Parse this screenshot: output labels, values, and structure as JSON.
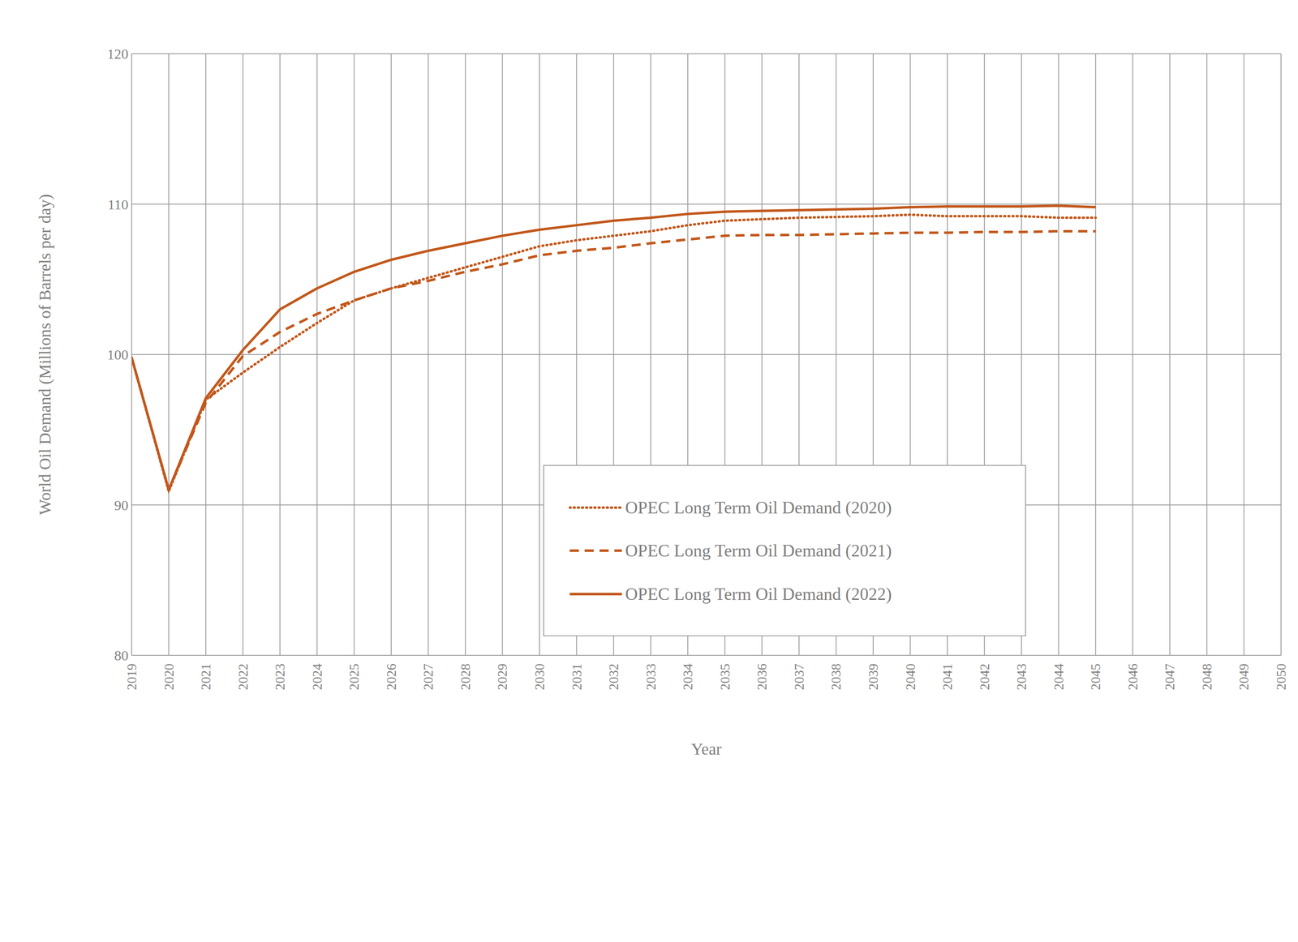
{
  "chart_data": {
    "type": "line",
    "x_label": "Year",
    "y_label": "World Oil Demand (Millions of Barrels per day)",
    "x": [
      2019,
      2020,
      2021,
      2022,
      2023,
      2024,
      2025,
      2026,
      2027,
      2028,
      2029,
      2030,
      2031,
      2032,
      2033,
      2034,
      2035,
      2036,
      2037,
      2038,
      2039,
      2040,
      2041,
      2042,
      2043,
      2044,
      2045
    ],
    "series": [
      {
        "name": "OPEC Long Term Oil Demand (2020)",
        "color": "#c2571a",
        "line_style": "dotted",
        "values": [
          99.8,
          90.9,
          97.0,
          98.8,
          100.5,
          102.1,
          103.6,
          104.4,
          105.1,
          105.8,
          106.5,
          107.2,
          107.6,
          107.9,
          108.2,
          108.6,
          108.9,
          109.0,
          109.1,
          109.15,
          109.2,
          109.3,
          109.2,
          109.2,
          109.2,
          109.1,
          109.1
        ]
      },
      {
        "name": "OPEC Long Term Oil Demand (2021)",
        "color": "#c2571a",
        "line_style": "dashed",
        "values": [
          99.8,
          91.0,
          96.8,
          99.9,
          101.5,
          102.7,
          103.6,
          104.4,
          104.9,
          105.5,
          106.0,
          106.6,
          106.9,
          107.1,
          107.4,
          107.65,
          107.9,
          107.95,
          107.95,
          108.0,
          108.05,
          108.1,
          108.1,
          108.15,
          108.15,
          108.2,
          108.2
        ]
      },
      {
        "name": "OPEC Long Term Oil Demand (2022)",
        "color": "#c2571a",
        "line_style": "solid",
        "values": [
          99.8,
          91.0,
          97.1,
          100.3,
          103.0,
          104.4,
          105.5,
          106.3,
          106.9,
          107.4,
          107.9,
          108.3,
          108.6,
          108.9,
          109.1,
          109.35,
          109.5,
          109.55,
          109.6,
          109.65,
          109.7,
          109.8,
          109.85,
          109.85,
          109.85,
          109.9,
          109.8
        ]
      }
    ],
    "xlim": [
      2019,
      2050
    ],
    "xticks": [
      2019,
      2020,
      2021,
      2022,
      2023,
      2024,
      2025,
      2026,
      2027,
      2028,
      2029,
      2030,
      2031,
      2032,
      2033,
      2034,
      2035,
      2036,
      2037,
      2038,
      2039,
      2040,
      2041,
      2042,
      2043,
      2044,
      2045,
      2046,
      2047,
      2048,
      2049,
      2050
    ],
    "ylim": [
      80,
      120
    ],
    "yticks": [
      80,
      90,
      100,
      110,
      120
    ],
    "grid": true,
    "legend": "center"
  }
}
